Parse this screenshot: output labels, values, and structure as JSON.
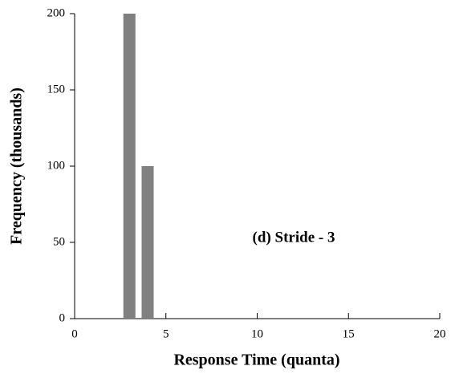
{
  "chart_data": {
    "type": "bar",
    "x": [
      3,
      4
    ],
    "values": [
      200,
      100
    ],
    "color": "#808080",
    "xlim": [
      0,
      20
    ],
    "xticks": [
      0,
      5,
      10,
      15,
      20
    ],
    "ylim": [
      0,
      200
    ],
    "yticks": [
      0,
      50,
      100,
      150,
      200
    ],
    "xlabel": "Response Time (quanta)",
    "ylabel": "Frequency (thousands)",
    "annotation": "(d) Stride - 3",
    "grid": false
  }
}
